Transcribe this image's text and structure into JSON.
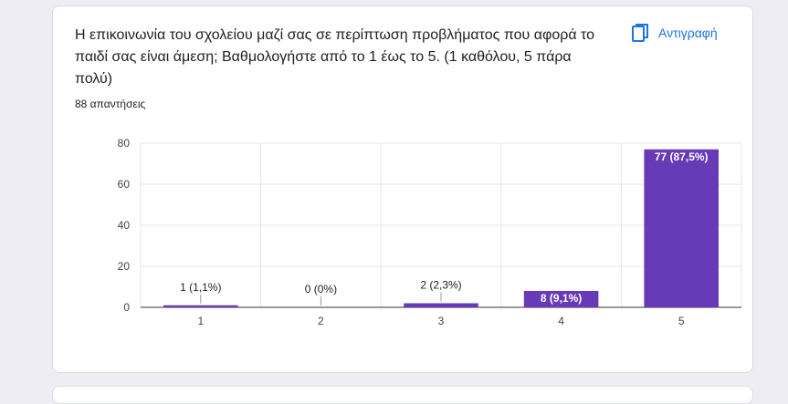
{
  "question": {
    "title": "Η επικοινωνία του σχολείου μαζί σας σε περίπτωση προβλήματος που αφορά το παιδί σας είναι άμεση;  Βαθμολογήστε από το 1 έως το 5. (1 καθόλου, 5 πάρα πολύ)",
    "responses": "88 απαντήσεις",
    "copy_label": "Αντιγραφή"
  },
  "colors": {
    "bar": "#673ab7",
    "accent": "#1a73e8",
    "grid": "#e6e6e6"
  },
  "chart_data": {
    "type": "bar",
    "categories": [
      "1",
      "2",
      "3",
      "4",
      "5"
    ],
    "values": [
      1,
      0,
      2,
      8,
      77
    ],
    "labels": [
      "1 (1,1%)",
      "0 (0%)",
      "2 (2,3%)",
      "8 (9,1%)",
      "77 (87,5%)"
    ],
    "yticks": [
      0,
      20,
      40,
      60,
      80
    ],
    "ylim": [
      0,
      80
    ],
    "grid": true
  }
}
